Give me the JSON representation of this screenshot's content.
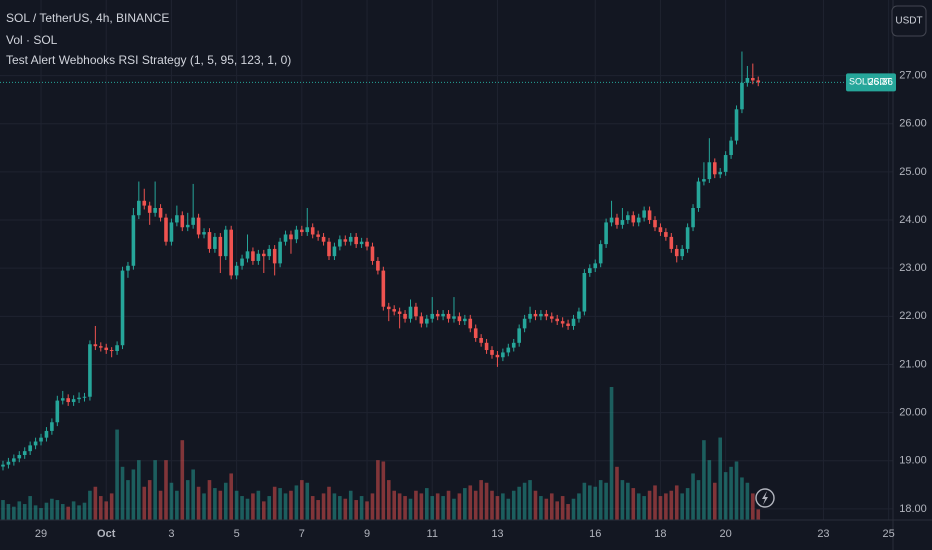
{
  "header": {
    "symbol": "SOL / TetherUS, 4h, BINANCE",
    "volume_label": "Vol · SOL",
    "strategy": "Test Alert Webhooks RSI Strategy (1, 5, 95, 123, 1, 0)"
  },
  "currency_button": "USDT",
  "chart_data": {
    "type": "candlestick",
    "symbol_label": "SOLUSDT",
    "up_color": "#26a69a",
    "down_color": "#ef5350",
    "volume_up_color": "rgba(38,166,154,0.5)",
    "volume_down_color": "rgba(239,83,80,0.5)",
    "grid": true,
    "xlim": [
      -0.55,
      163.8
    ],
    "xticks": [
      {
        "value": 7,
        "label": "29"
      },
      {
        "value": 19,
        "label": "Oct"
      },
      {
        "value": 31,
        "label": "3"
      },
      {
        "value": 43,
        "label": "5"
      },
      {
        "value": 55,
        "label": "7"
      },
      {
        "value": 67,
        "label": "9"
      },
      {
        "value": 79,
        "label": "11"
      },
      {
        "value": 91,
        "label": "13"
      },
      {
        "value": 109,
        "label": "16"
      },
      {
        "value": 121,
        "label": "18"
      },
      {
        "value": 133,
        "label": "20"
      },
      {
        "value": 151,
        "label": "23"
      },
      {
        "value": 163,
        "label": "25"
      }
    ],
    "ylim": [
      17.77,
      28.57
    ],
    "yticks": [
      {
        "value": 18,
        "label": "18.00"
      },
      {
        "value": 19,
        "label": "19.00"
      },
      {
        "value": 20,
        "label": "20.00"
      },
      {
        "value": 21,
        "label": "21.00"
      },
      {
        "value": 22,
        "label": "22.00"
      },
      {
        "value": 23,
        "label": "23.00"
      },
      {
        "value": 24,
        "label": "24.00"
      },
      {
        "value": 25,
        "label": "25.00"
      },
      {
        "value": 26,
        "label": "26.00"
      },
      {
        "value": 27,
        "label": "27.00"
      }
    ],
    "open": [
      18.88,
      18.92,
      18.98,
      19.05,
      19.12,
      19.2,
      19.32,
      19.4,
      19.48,
      19.62,
      19.8,
      20.25,
      20.3,
      20.22,
      20.28,
      20.31,
      20.33,
      21.42,
      21.38,
      21.35,
      21.3,
      21.28,
      21.4,
      22.95,
      23.05,
      24.1,
      24.4,
      24.3,
      24.15,
      24.25,
      24.05,
      23.55,
      23.95,
      24.1,
      23.85,
      23.9,
      24.05,
      23.7,
      23.75,
      23.4,
      23.65,
      23.25,
      23.8,
      22.85,
      23.05,
      23.2,
      23.35,
      23.15,
      23.3,
      23.25,
      23.4,
      23.1,
      23.55,
      23.7,
      23.6,
      23.8,
      23.75,
      23.85,
      23.7,
      23.65,
      23.55,
      23.25,
      23.45,
      23.6,
      23.55,
      23.65,
      23.5,
      23.55,
      23.45,
      23.15,
      22.95,
      22.2,
      22.15,
      22.1,
      22.05,
      21.95,
      22.2,
      22.0,
      21.85,
      21.95,
      22.05,
      22.0,
      22.05,
      21.95,
      22.0,
      21.9,
      21.95,
      21.75,
      21.55,
      21.45,
      21.3,
      21.2,
      21.15,
      21.25,
      21.35,
      21.45,
      21.75,
      21.95,
      22.05,
      22.0,
      22.05,
      22.0,
      21.95,
      21.9,
      21.85,
      21.8,
      21.95,
      22.1,
      22.9,
      23.0,
      23.1,
      23.5,
      23.95,
      24.05,
      23.9,
      24.0,
      24.1,
      23.95,
      24.05,
      24.2,
      24.0,
      23.85,
      23.75,
      23.65,
      23.4,
      23.25,
      23.4,
      23.85,
      24.25,
      24.8,
      24.85,
      25.2,
      24.95,
      25.0,
      25.35,
      25.65,
      26.3,
      26.85,
      26.95,
      26.9
    ],
    "high": [
      19.0,
      19.06,
      19.13,
      19.2,
      19.28,
      19.4,
      19.48,
      19.56,
      19.7,
      19.88,
      20.35,
      20.45,
      20.38,
      20.36,
      20.42,
      20.41,
      21.5,
      21.8,
      21.46,
      21.43,
      21.36,
      21.48,
      23.03,
      23.13,
      24.25,
      24.8,
      24.65,
      24.38,
      24.8,
      24.33,
      24.13,
      24.03,
      24.3,
      24.18,
      24.15,
      24.75,
      24.13,
      23.83,
      23.83,
      23.73,
      23.73,
      23.88,
      23.88,
      23.13,
      23.28,
      23.7,
      23.43,
      23.38,
      23.38,
      23.48,
      23.48,
      23.63,
      23.78,
      23.78,
      23.88,
      23.88,
      24.25,
      23.93,
      23.78,
      23.73,
      23.63,
      23.53,
      23.68,
      23.68,
      23.73,
      23.73,
      23.63,
      23.63,
      23.53,
      23.23,
      23.03,
      22.28,
      22.23,
      22.18,
      22.13,
      22.35,
      22.28,
      22.08,
      22.03,
      22.4,
      22.13,
      22.13,
      22.13,
      22.4,
      22.08,
      22.03,
      22.03,
      21.83,
      21.63,
      21.53,
      21.38,
      21.28,
      21.33,
      21.43,
      21.53,
      21.83,
      22.03,
      22.2,
      22.13,
      22.13,
      22.13,
      22.08,
      22.03,
      21.98,
      21.93,
      22.03,
      22.18,
      22.98,
      23.08,
      23.18,
      23.58,
      24.03,
      24.4,
      24.13,
      24.25,
      24.18,
      24.18,
      24.13,
      24.28,
      24.28,
      24.08,
      23.93,
      23.83,
      23.73,
      23.48,
      23.48,
      23.93,
      24.33,
      24.88,
      25.2,
      25.7,
      25.28,
      25.08,
      25.43,
      25.73,
      26.38,
      27.5,
      27.2,
      27.25,
      26.98
    ],
    "low": [
      18.8,
      18.84,
      18.9,
      18.97,
      19.04,
      19.12,
      19.24,
      19.32,
      19.4,
      19.54,
      19.72,
      20.17,
      20.14,
      20.14,
      20.2,
      20.23,
      20.25,
      21.3,
      21.27,
      21.22,
      21.15,
      21.2,
      21.32,
      22.8,
      22.97,
      24.02,
      24.22,
      23.9,
      24.07,
      23.97,
      23.47,
      23.47,
      23.87,
      23.77,
      23.77,
      23.82,
      23.62,
      23.62,
      23.32,
      23.32,
      22.9,
      23.17,
      22.77,
      22.77,
      22.97,
      23.12,
      23.07,
      23.07,
      22.9,
      23.17,
      22.85,
      23.02,
      23.47,
      23.3,
      23.52,
      23.67,
      23.67,
      23.62,
      23.57,
      23.47,
      23.17,
      23.17,
      23.37,
      23.47,
      23.47,
      23.42,
      23.42,
      23.37,
      23.07,
      22.87,
      22.12,
      21.9,
      22.02,
      21.75,
      21.87,
      21.87,
      21.92,
      21.77,
      21.77,
      21.87,
      21.92,
      21.92,
      21.87,
      21.87,
      21.82,
      21.82,
      21.67,
      21.47,
      21.37,
      21.22,
      21.12,
      20.95,
      21.07,
      21.17,
      21.27,
      21.37,
      21.67,
      21.87,
      21.92,
      21.92,
      21.92,
      21.87,
      21.82,
      21.77,
      21.72,
      21.72,
      21.87,
      22.02,
      22.82,
      22.92,
      23.02,
      23.42,
      23.87,
      23.82,
      23.82,
      23.92,
      23.87,
      23.87,
      23.97,
      23.92,
      23.77,
      23.67,
      23.57,
      23.32,
      23.12,
      23.17,
      23.32,
      23.77,
      24.17,
      24.72,
      24.77,
      24.87,
      24.87,
      24.92,
      25.27,
      25.57,
      26.22,
      26.77,
      26.82,
      26.78
    ],
    "close": [
      18.92,
      18.98,
      19.05,
      19.12,
      19.2,
      19.32,
      19.4,
      19.48,
      19.62,
      19.8,
      20.25,
      20.3,
      20.22,
      20.28,
      20.31,
      20.33,
      21.42,
      21.38,
      21.35,
      21.3,
      21.28,
      21.4,
      22.95,
      23.05,
      24.1,
      24.4,
      24.3,
      24.15,
      24.25,
      24.05,
      23.55,
      23.95,
      24.1,
      23.85,
      23.9,
      24.05,
      23.7,
      23.75,
      23.4,
      23.65,
      23.25,
      23.8,
      22.85,
      23.05,
      23.2,
      23.35,
      23.15,
      23.3,
      23.25,
      23.4,
      23.1,
      23.55,
      23.7,
      23.6,
      23.8,
      23.75,
      23.85,
      23.7,
      23.65,
      23.55,
      23.25,
      23.45,
      23.6,
      23.55,
      23.65,
      23.5,
      23.55,
      23.45,
      23.15,
      22.95,
      22.2,
      22.15,
      22.1,
      22.05,
      21.95,
      22.2,
      22.0,
      21.85,
      21.95,
      22.05,
      22.0,
      22.05,
      21.95,
      22.0,
      21.9,
      21.95,
      21.75,
      21.55,
      21.45,
      21.3,
      21.2,
      21.15,
      21.25,
      21.35,
      21.45,
      21.75,
      21.95,
      22.05,
      22.0,
      22.05,
      22.0,
      21.95,
      21.9,
      21.85,
      21.8,
      21.95,
      22.1,
      22.9,
      23.0,
      23.1,
      23.5,
      23.95,
      24.05,
      23.9,
      24.0,
      24.1,
      23.95,
      24.05,
      24.2,
      24.0,
      23.85,
      23.75,
      23.65,
      23.4,
      23.25,
      23.4,
      23.85,
      24.25,
      24.8,
      24.85,
      25.2,
      24.95,
      25.0,
      25.35,
      25.65,
      26.3,
      26.85,
      26.95,
      26.9,
      26.86
    ],
    "volume": [
      15,
      12,
      10,
      14,
      12,
      18,
      11,
      9,
      13,
      16,
      15,
      12,
      10,
      14,
      11,
      13,
      22,
      25,
      18,
      14,
      20,
      68,
      40,
      30,
      38,
      45,
      25,
      30,
      45,
      22,
      45,
      28,
      22,
      60,
      30,
      38,
      25,
      20,
      30,
      24,
      22,
      28,
      35,
      22,
      18,
      16,
      20,
      22,
      14,
      18,
      25,
      24,
      20,
      22,
      26,
      30,
      28,
      18,
      15,
      20,
      25,
      20,
      18,
      16,
      22,
      15,
      18,
      14,
      20,
      45,
      44,
      30,
      22,
      20,
      18,
      16,
      22,
      20,
      24,
      18,
      20,
      18,
      22,
      16,
      20,
      24,
      26,
      22,
      30,
      28,
      22,
      18,
      20,
      16,
      22,
      25,
      28,
      30,
      22,
      18,
      16,
      20,
      14,
      18,
      12,
      16,
      20,
      28,
      26,
      25,
      30,
      28,
      100,
      40,
      30,
      28,
      24,
      20,
      18,
      22,
      26,
      18,
      20,
      22,
      26,
      20,
      24,
      35,
      30,
      60,
      45,
      28,
      62,
      36,
      40,
      44,
      32,
      28,
      20,
      8
    ]
  }
}
